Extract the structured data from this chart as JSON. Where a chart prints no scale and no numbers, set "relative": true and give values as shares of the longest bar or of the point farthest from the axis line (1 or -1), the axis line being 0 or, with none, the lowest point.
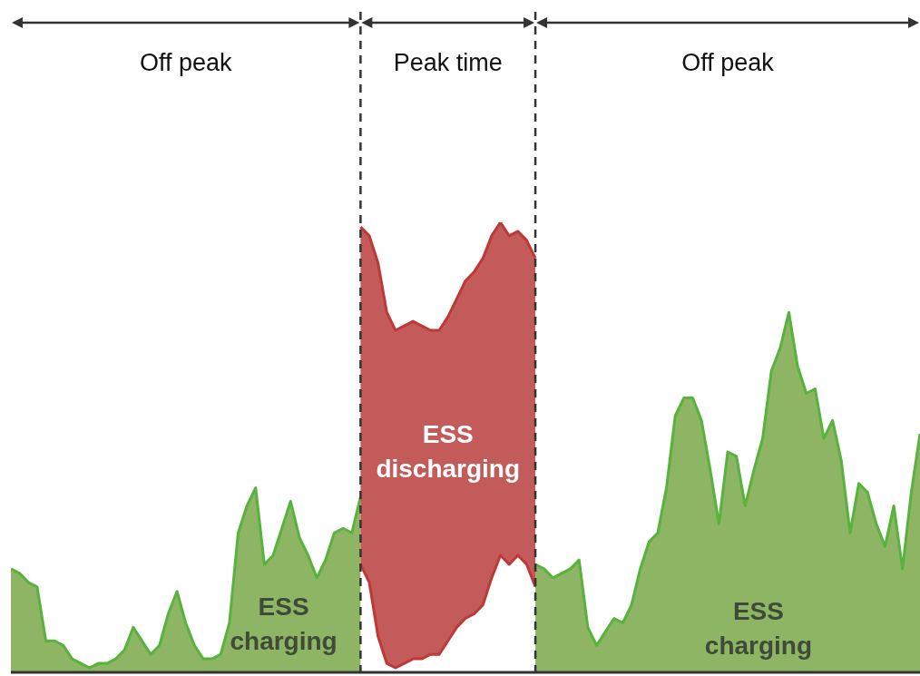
{
  "chart_data": {
    "type": "area",
    "relative": true,
    "categories": [
      null,
      null,
      null,
      null,
      null,
      null,
      null,
      null,
      null,
      null,
      null,
      null,
      null,
      null,
      null,
      null,
      null,
      null,
      null,
      null,
      null,
      null,
      null,
      null,
      null,
      null,
      null,
      null,
      null,
      null,
      null,
      null,
      null,
      null,
      null,
      null,
      null,
      null,
      null,
      null,
      null,
      null,
      null,
      null,
      null,
      null,
      null,
      null,
      null,
      null,
      null,
      null,
      null,
      null,
      null,
      null,
      null,
      null,
      null,
      null,
      null,
      null,
      null,
      null,
      null,
      null,
      null,
      null,
      null,
      null,
      null,
      null,
      null,
      null,
      null,
      null,
      null,
      null,
      null,
      null,
      null,
      null,
      null,
      null,
      null,
      null,
      null,
      null,
      null,
      null,
      null,
      null,
      null,
      null,
      null,
      null,
      null,
      null,
      null,
      null,
      null,
      null,
      null,
      null,
      null
    ],
    "series": [
      {
        "color": "#8db563",
        "values": [
          0.23,
          0.22,
          0.2,
          0.19,
          0.07,
          0.07,
          0.06,
          0.03,
          0.02,
          0.01,
          0.02,
          0.02,
          0.03,
          0.05,
          0.1,
          0.07,
          0.04,
          0.06,
          0.13,
          0.18,
          0.11,
          0.06,
          0.03,
          0.03,
          0.04,
          0.11,
          0.31,
          0.37,
          0.41,
          0.24,
          0.26,
          0.32,
          0.38,
          0.3,
          0.26,
          0.21,
          0.25,
          0.31,
          0.32,
          0.31,
          0.39,
          null,
          null,
          null,
          null,
          null,
          null,
          null,
          null,
          null,
          null,
          null,
          null,
          null,
          null,
          null,
          null,
          null,
          null,
          null,
          0.24,
          0.23,
          0.21,
          0.22,
          0.23,
          0.25,
          0.1,
          0.06,
          0.09,
          0.12,
          0.11,
          0.15,
          0.23,
          0.29,
          0.31,
          0.41,
          0.57,
          0.61,
          0.61,
          0.56,
          0.45,
          0.33,
          0.49,
          0.48,
          0.37,
          0.45,
          0.52,
          0.67,
          0.72,
          0.8,
          0.68,
          0.62,
          0.63,
          0.52,
          0.56,
          0.47,
          0.31,
          0.42,
          0.4,
          0.33,
          0.28,
          0.37,
          0.23,
          0.4,
          0.53
        ]
      },
      {
        "color": "#c25b59",
        "values": [
          null,
          null,
          null,
          null,
          null,
          null,
          null,
          null,
          null,
          null,
          null,
          null,
          null,
          null,
          null,
          null,
          null,
          null,
          null,
          null,
          null,
          null,
          null,
          null,
          null,
          null,
          null,
          null,
          null,
          null,
          null,
          null,
          null,
          null,
          null,
          null,
          null,
          null,
          null,
          null,
          0.99,
          0.97,
          0.91,
          0.8,
          0.76,
          0.77,
          0.78,
          0.77,
          0.76,
          0.76,
          0.79,
          0.83,
          0.87,
          0.89,
          0.92,
          0.97,
          1.0,
          0.97,
          0.98,
          0.96,
          0.92,
          null,
          null,
          null,
          null,
          null,
          null,
          null,
          null,
          null,
          null,
          null,
          null,
          null,
          null,
          null,
          null,
          null,
          null,
          null,
          null,
          null,
          null,
          null,
          null,
          null,
          null,
          null,
          null,
          null,
          null,
          null,
          null,
          null,
          null,
          null,
          null,
          null,
          null,
          null,
          null,
          null,
          null,
          null,
          null
        ],
        "type": "area"
      },
      {
        "color": "#ffffff",
        "values": [
          null,
          null,
          null,
          null,
          null,
          null,
          null,
          null,
          null,
          null,
          null,
          null,
          null,
          null,
          null,
          null,
          null,
          null,
          null,
          null,
          null,
          null,
          null,
          null,
          null,
          null,
          null,
          null,
          null,
          null,
          null,
          null,
          null,
          null,
          null,
          null,
          null,
          null,
          null,
          null,
          0.24,
          0.2,
          0.08,
          0.02,
          0.01,
          0.02,
          0.03,
          0.03,
          0.04,
          0.04,
          0.07,
          0.1,
          0.12,
          0.13,
          0.15,
          0.21,
          0.26,
          0.24,
          0.26,
          0.24,
          0.19,
          null,
          null,
          null,
          null,
          null,
          null,
          null,
          null,
          null,
          null,
          null,
          null,
          null,
          null,
          null,
          null,
          null,
          null,
          null,
          null,
          null,
          null,
          null,
          null,
          null,
          null,
          null,
          null,
          null,
          null,
          null,
          null,
          null,
          null,
          null,
          null,
          null,
          null,
          null,
          null,
          null,
          null,
          null,
          null
        ]
      }
    ],
    "annotations": [
      "Off peak",
      "Peak time",
      "Off peak",
      "ESS charging",
      "ESS discharging",
      "ESS charging"
    ]
  }
}
